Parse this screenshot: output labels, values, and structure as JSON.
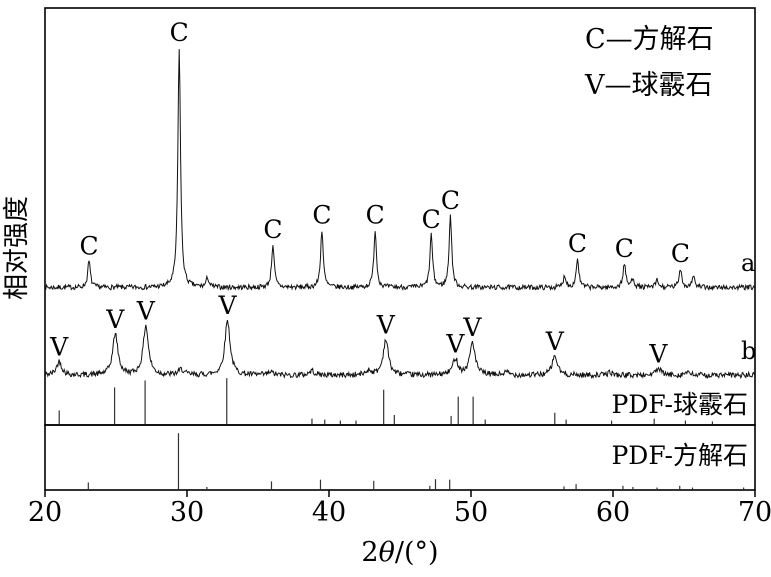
{
  "chart_data": {
    "type": "line",
    "chart_kind": "XRD-pattern",
    "title": "",
    "xlabel": "2θ/(°)",
    "ylabel": "相对强度",
    "xlim": [
      20,
      70
    ],
    "x_ticks": [
      20,
      30,
      40,
      50,
      60,
      70
    ],
    "grid": false,
    "legend": {
      "position": "top-right",
      "entries": [
        "C—方解石",
        "V—球霰石"
      ]
    },
    "series": [
      {
        "name": "a",
        "phase_label": "C",
        "peaks": [
          [
            23.1,
            11
          ],
          [
            29.45,
            100
          ],
          [
            31.45,
            4
          ],
          [
            36.05,
            18
          ],
          [
            39.5,
            24
          ],
          [
            43.25,
            24
          ],
          [
            47.2,
            22
          ],
          [
            48.55,
            30
          ],
          [
            56.6,
            5
          ],
          [
            57.5,
            12
          ],
          [
            60.8,
            10
          ],
          [
            61.4,
            4
          ],
          [
            63.1,
            3
          ],
          [
            64.75,
            8
          ],
          [
            65.65,
            5
          ]
        ],
        "labeled_peak_positions": [
          23.1,
          29.45,
          36.05,
          39.5,
          43.25,
          47.2,
          48.55,
          57.5,
          60.8,
          64.75
        ]
      },
      {
        "name": "b",
        "phase_label": "V",
        "peaks": [
          [
            21.0,
            25
          ],
          [
            24.95,
            75
          ],
          [
            27.1,
            90
          ],
          [
            29.6,
            10
          ],
          [
            32.85,
            100
          ],
          [
            35.9,
            5
          ],
          [
            38.8,
            8
          ],
          [
            42.8,
            8
          ],
          [
            44.0,
            65
          ],
          [
            48.9,
            30
          ],
          [
            50.1,
            60
          ],
          [
            52.5,
            5
          ],
          [
            55.9,
            35
          ],
          [
            59.8,
            5
          ],
          [
            63.2,
            12
          ],
          [
            65.2,
            5
          ]
        ],
        "labeled_peak_positions": [
          21.0,
          24.95,
          27.1,
          32.85,
          44.0,
          48.9,
          50.1,
          55.9,
          63.2
        ]
      }
    ],
    "references": [
      {
        "name": "PDF-球霰石",
        "panel": "top",
        "sticks": [
          [
            21.0,
            30
          ],
          [
            24.9,
            80
          ],
          [
            27.05,
            95
          ],
          [
            32.8,
            100
          ],
          [
            38.8,
            12
          ],
          [
            39.7,
            10
          ],
          [
            40.8,
            8
          ],
          [
            41.9,
            8
          ],
          [
            43.85,
            75
          ],
          [
            44.6,
            20
          ],
          [
            48.6,
            18
          ],
          [
            49.1,
            60
          ],
          [
            50.15,
            60
          ],
          [
            51.0,
            10
          ],
          [
            55.9,
            25
          ],
          [
            56.7,
            10
          ],
          [
            59.9,
            8
          ],
          [
            62.9,
            12
          ],
          [
            65.1,
            8
          ],
          [
            67.0,
            6
          ]
        ]
      },
      {
        "name": "PDF-方解石",
        "panel": "bottom",
        "sticks": [
          [
            23.05,
            12
          ],
          [
            29.4,
            100
          ],
          [
            31.4,
            4
          ],
          [
            35.95,
            14
          ],
          [
            39.4,
            17
          ],
          [
            43.15,
            15
          ],
          [
            47.1,
            6
          ],
          [
            47.5,
            18
          ],
          [
            48.5,
            17
          ],
          [
            56.55,
            5
          ],
          [
            57.4,
            9
          ],
          [
            60.7,
            6
          ],
          [
            61.4,
            4
          ],
          [
            63.1,
            3
          ],
          [
            64.7,
            6
          ],
          [
            65.6,
            3
          ],
          [
            69.2,
            3
          ]
        ]
      }
    ]
  }
}
